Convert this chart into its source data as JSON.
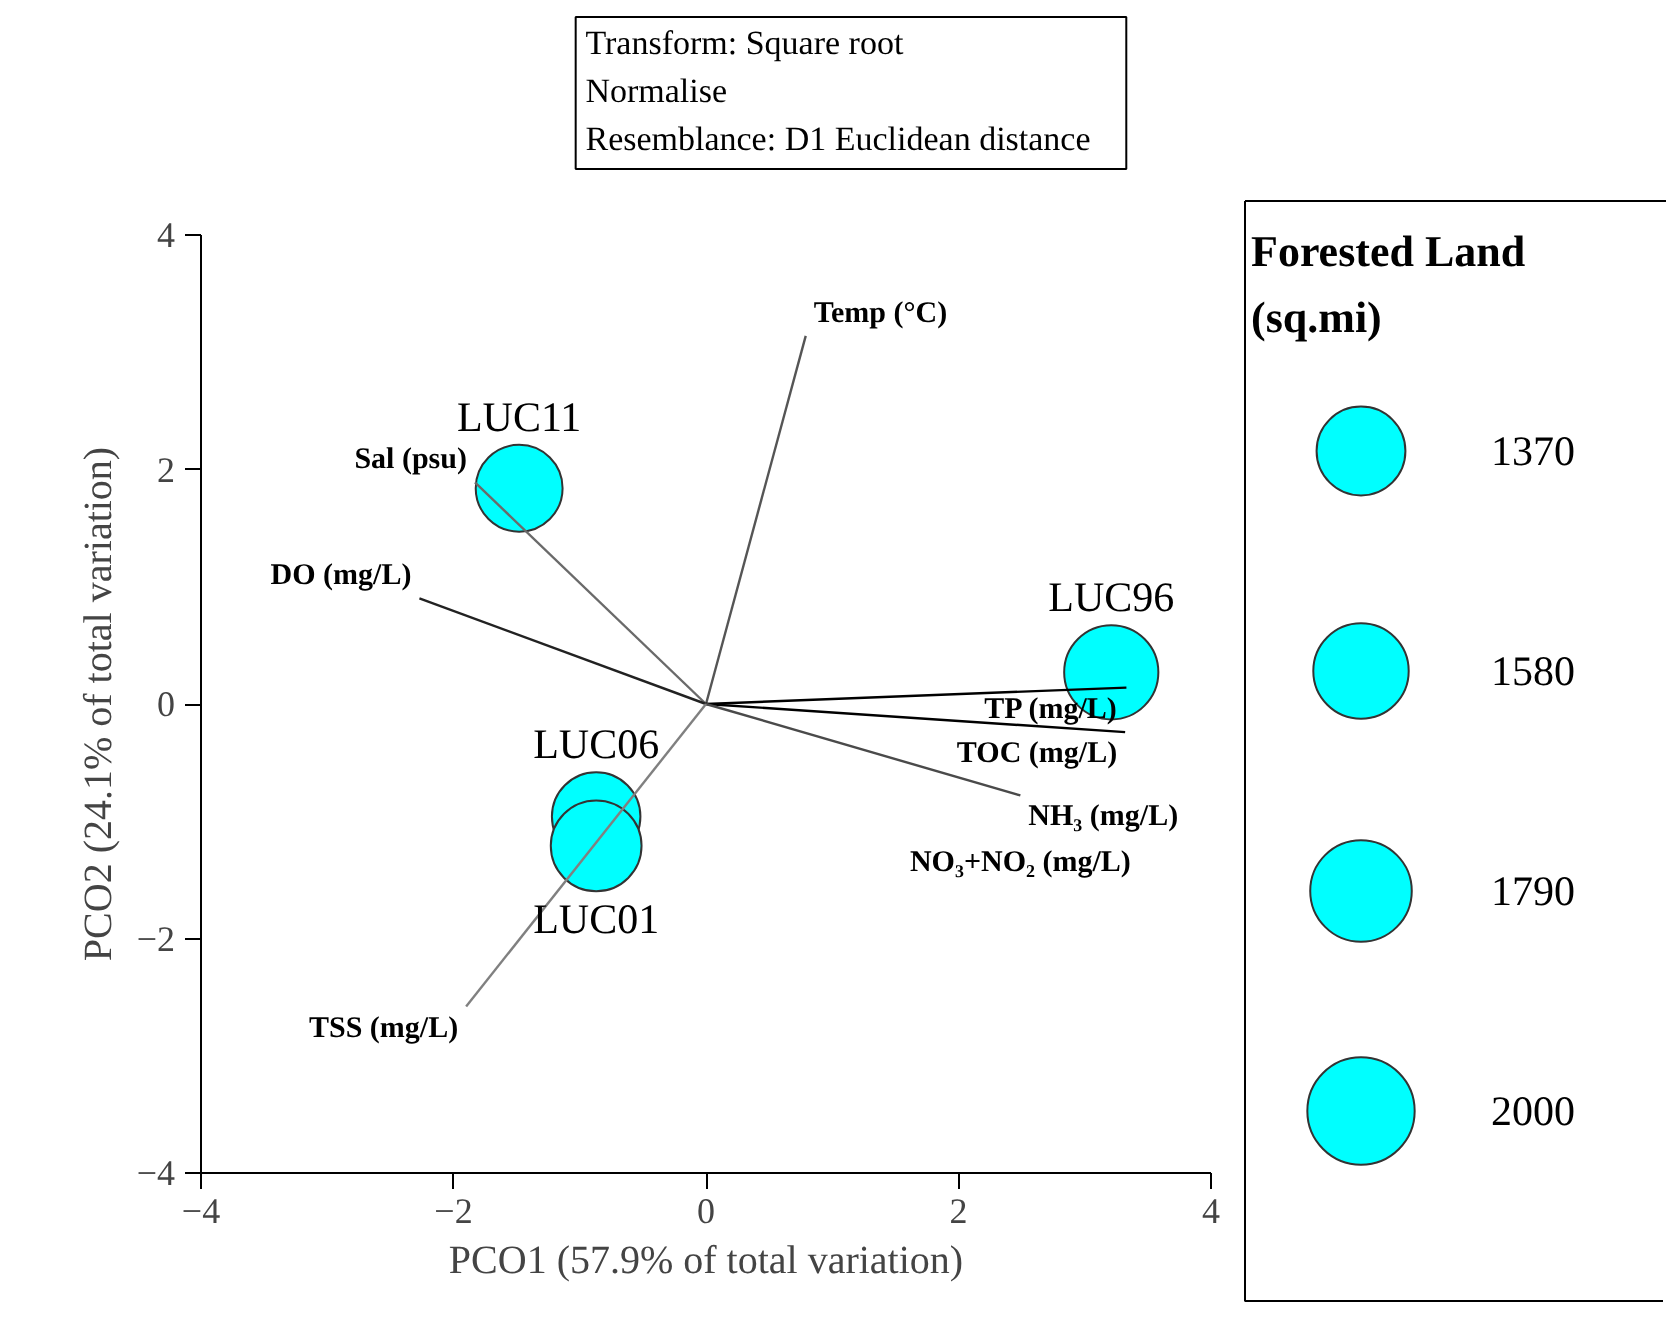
{
  "chart_data": {
    "type": "bubble",
    "xlabel": "PCO1 (57.9% of total variation)",
    "ylabel": "PCO2 (24.1% of total variation)",
    "legend_title": "Forested Land (sq.mi)",
    "size_legend": [
      1370,
      1580,
      1790,
      2000
    ],
    "xlim": [
      -4,
      4
    ],
    "ylim": [
      -4,
      4
    ],
    "xticks": [
      -4,
      -2,
      0,
      2,
      4
    ],
    "yticks": [
      -4,
      -2,
      0,
      2,
      4
    ],
    "grid": false,
    "legend": "right",
    "series": [
      {
        "name": "LUC11",
        "color": "#00ffff",
        "x": [
          -1.48
        ],
        "values": [
          1.84
        ],
        "sizes": [
          1310
        ]
      },
      {
        "name": "LUC96",
        "color": "#00ffff",
        "x": [
          3.21
        ],
        "values": [
          0.27
        ],
        "sizes": [
          1540
        ]
      },
      {
        "name": "LUC06",
        "color": "#00ffff",
        "x": [
          -0.87
        ],
        "values": [
          -0.96
        ],
        "sizes": [
          1360
        ]
      },
      {
        "name": "LUC01",
        "color": "#00ffff",
        "x": [
          -0.87
        ],
        "values": [
          -1.21
        ],
        "sizes": [
          1430
        ]
      },
      {
        "type": "line",
        "name": "Temp (°C)",
        "color": "#555555",
        "x": [
          0,
          0.79
        ],
        "values": [
          0,
          3.14
        ]
      },
      {
        "type": "line",
        "name": "Sal (psu)",
        "color": "#6a6a6a",
        "x": [
          0,
          -1.83
        ],
        "values": [
          0,
          1.89
        ]
      },
      {
        "type": "line",
        "name": "DO (mg/L)",
        "color": "#222222",
        "x": [
          0,
          -2.27
        ],
        "values": [
          0,
          0.9
        ]
      },
      {
        "type": "line",
        "name": "TP (mg/L)",
        "color": "#000000",
        "x": [
          0,
          3.33
        ],
        "values": [
          0,
          0.14
        ]
      },
      {
        "type": "line",
        "name": "TOC (mg/L)",
        "color": "#000000",
        "x": [
          0,
          3.32
        ],
        "values": [
          0,
          -0.24
        ]
      },
      {
        "type": "line",
        "name": "NH₃ (mg/L)",
        "color": "#4a4a4a",
        "x": [
          0,
          2.49
        ],
        "values": [
          0,
          -0.78
        ]
      },
      {
        "type": "line",
        "name": "TSS (mg/L)",
        "color": "#808080",
        "x": [
          0,
          -1.9
        ],
        "values": [
          0,
          -2.58
        ]
      }
    ],
    "annotations": [
      "Transform: Square root",
      "Normalise",
      "Resemblance: D1 Euclidean distance",
      {
        "text": "NO₃+NO₂ (mg/L)",
        "x": 2.49,
        "y": -0.78
      }
    ]
  }
}
